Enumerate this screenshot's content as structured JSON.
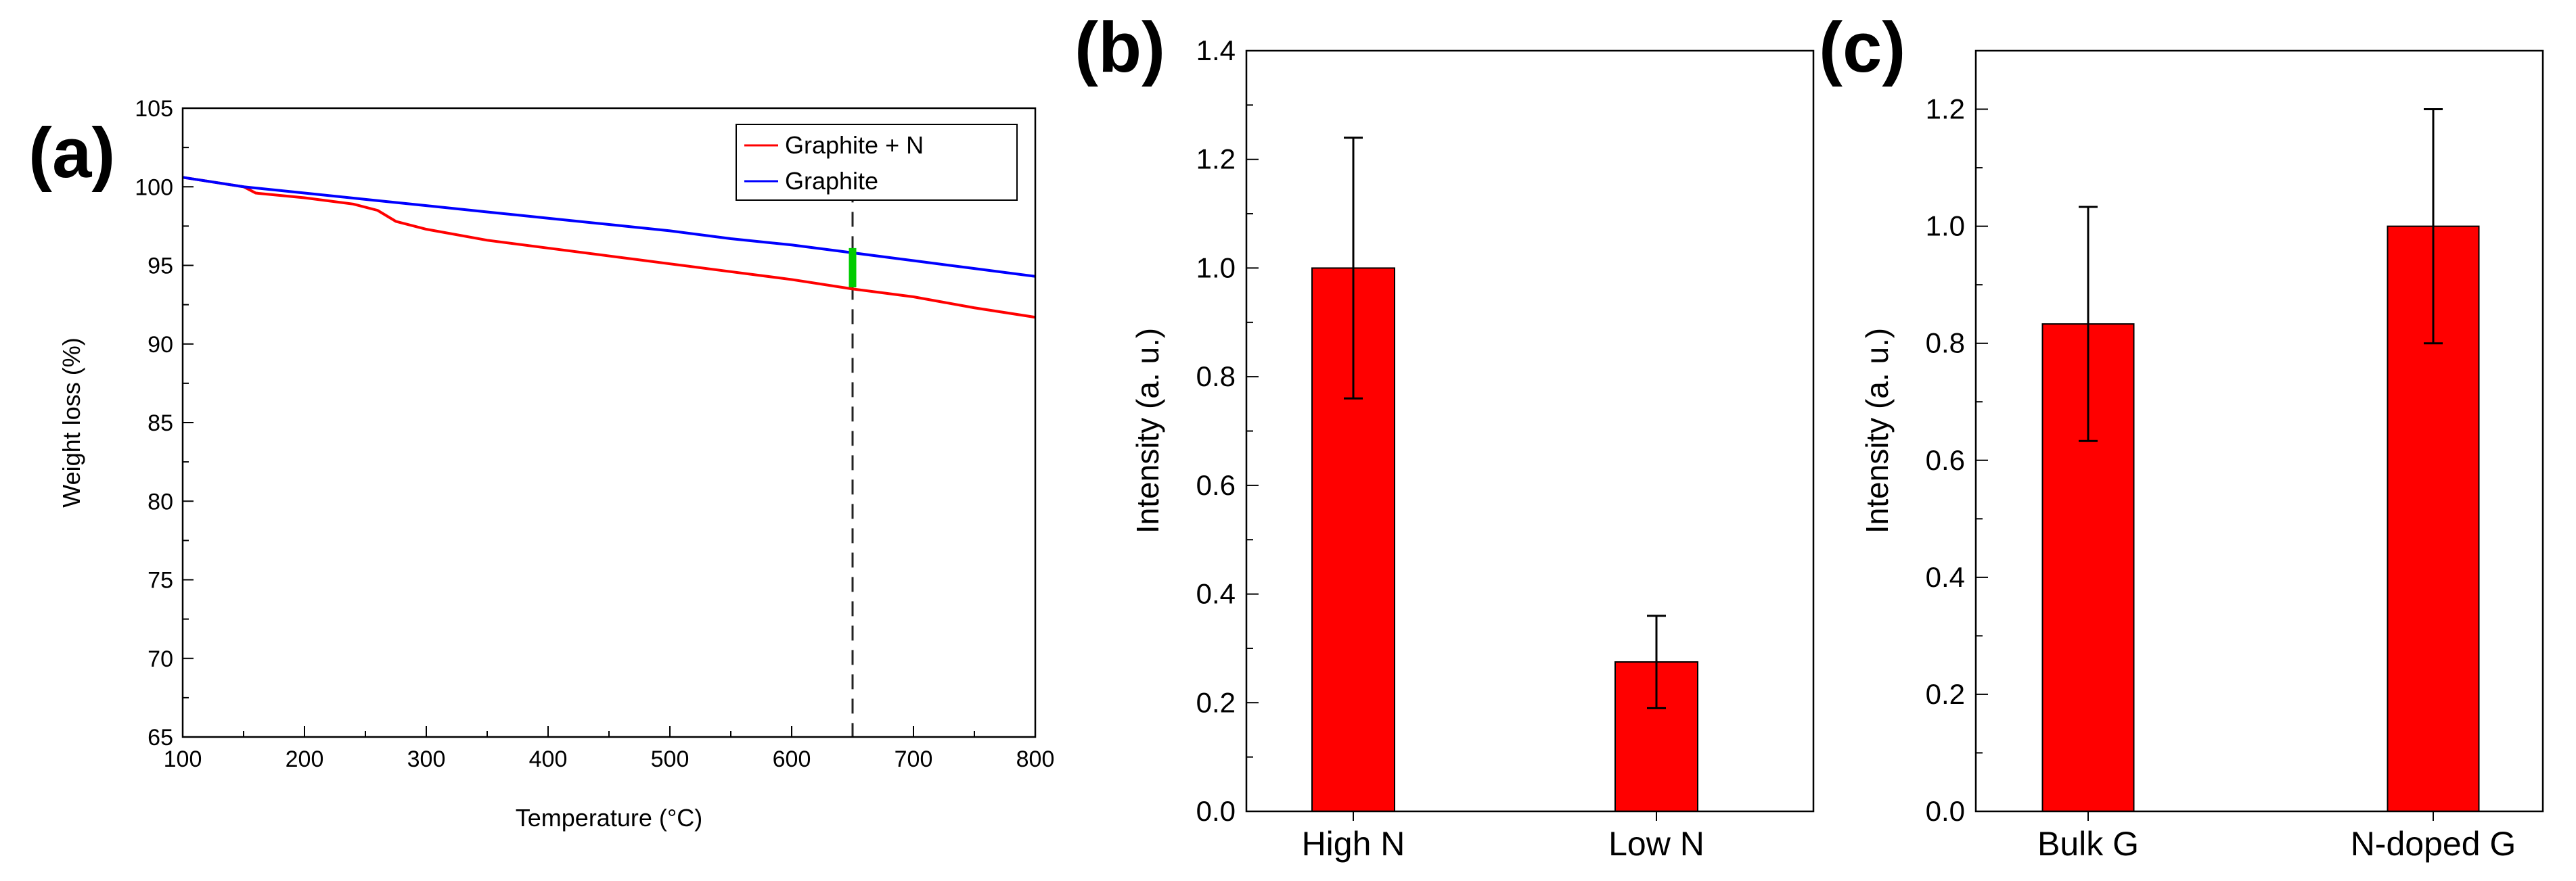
{
  "panels": {
    "a": "(a)",
    "b": "(b)",
    "c": "(c)"
  },
  "colors": {
    "graphite_n": "#ff0000",
    "graphite": "#0000ff",
    "marker": "#00cc00",
    "bar": "#ff0000"
  },
  "chart_data": [
    {
      "type": "line",
      "xlabel": "Temperature (°C)",
      "ylabel": "Weight loss (%)",
      "xlim": [
        100,
        800
      ],
      "ylim": [
        65,
        105
      ],
      "xticks": [
        100,
        200,
        300,
        400,
        500,
        600,
        700,
        800
      ],
      "yticks": [
        65,
        70,
        75,
        80,
        85,
        90,
        95,
        100,
        105
      ],
      "legend_position": "top-right",
      "series": [
        {
          "name": "Graphite + N",
          "color": "#ff0000",
          "x": [
            100,
            150,
            160,
            200,
            240,
            260,
            275,
            300,
            350,
            400,
            450,
            500,
            550,
            600,
            650,
            700,
            750,
            800
          ],
          "y": [
            100.6,
            100.0,
            99.6,
            99.3,
            98.9,
            98.5,
            97.8,
            97.3,
            96.6,
            96.1,
            95.6,
            95.1,
            94.6,
            94.1,
            93.5,
            93.0,
            92.3,
            91.7
          ]
        },
        {
          "name": "Graphite",
          "color": "#0000ff",
          "x": [
            100,
            150,
            200,
            250,
            300,
            350,
            400,
            450,
            500,
            550,
            600,
            650,
            700,
            750,
            800
          ],
          "y": [
            100.6,
            100.0,
            99.6,
            99.2,
            98.8,
            98.4,
            98.0,
            97.6,
            97.2,
            96.7,
            96.3,
            95.8,
            95.3,
            94.8,
            94.3
          ]
        }
      ],
      "annotations": {
        "vline_x": 650,
        "gap_marker": {
          "x": 650,
          "y_from": 93.6,
          "y_to": 96.1
        }
      }
    },
    {
      "type": "bar",
      "categories": [
        "High N",
        "Low N"
      ],
      "values": [
        1.0,
        0.275
      ],
      "errors": [
        0.24,
        0.085
      ],
      "ylabel": "Intensity (a. u.)",
      "ylim": [
        0.0,
        1.4
      ],
      "yticks": [
        0.0,
        0.2,
        0.4,
        0.6,
        0.8,
        1.0,
        1.2,
        1.4
      ],
      "ytick_labels": [
        "0.0",
        "0.2",
        "0.4",
        "0.6",
        "0.8",
        "1.0",
        "1.2",
        "1.4"
      ]
    },
    {
      "type": "bar",
      "categories": [
        "Bulk G",
        "N-doped G"
      ],
      "values": [
        0.833,
        1.0
      ],
      "errors": [
        0.2,
        0.2
      ],
      "ylabel": "Intensity (a. u.)",
      "ylim": [
        0.0,
        1.3
      ],
      "yticks": [
        0.0,
        0.2,
        0.4,
        0.6,
        0.8,
        1.0,
        1.2
      ],
      "ytick_labels": [
        "0.0",
        "0.2",
        "0.4",
        "0.6",
        "0.8",
        "1.0",
        "1.2"
      ]
    }
  ]
}
